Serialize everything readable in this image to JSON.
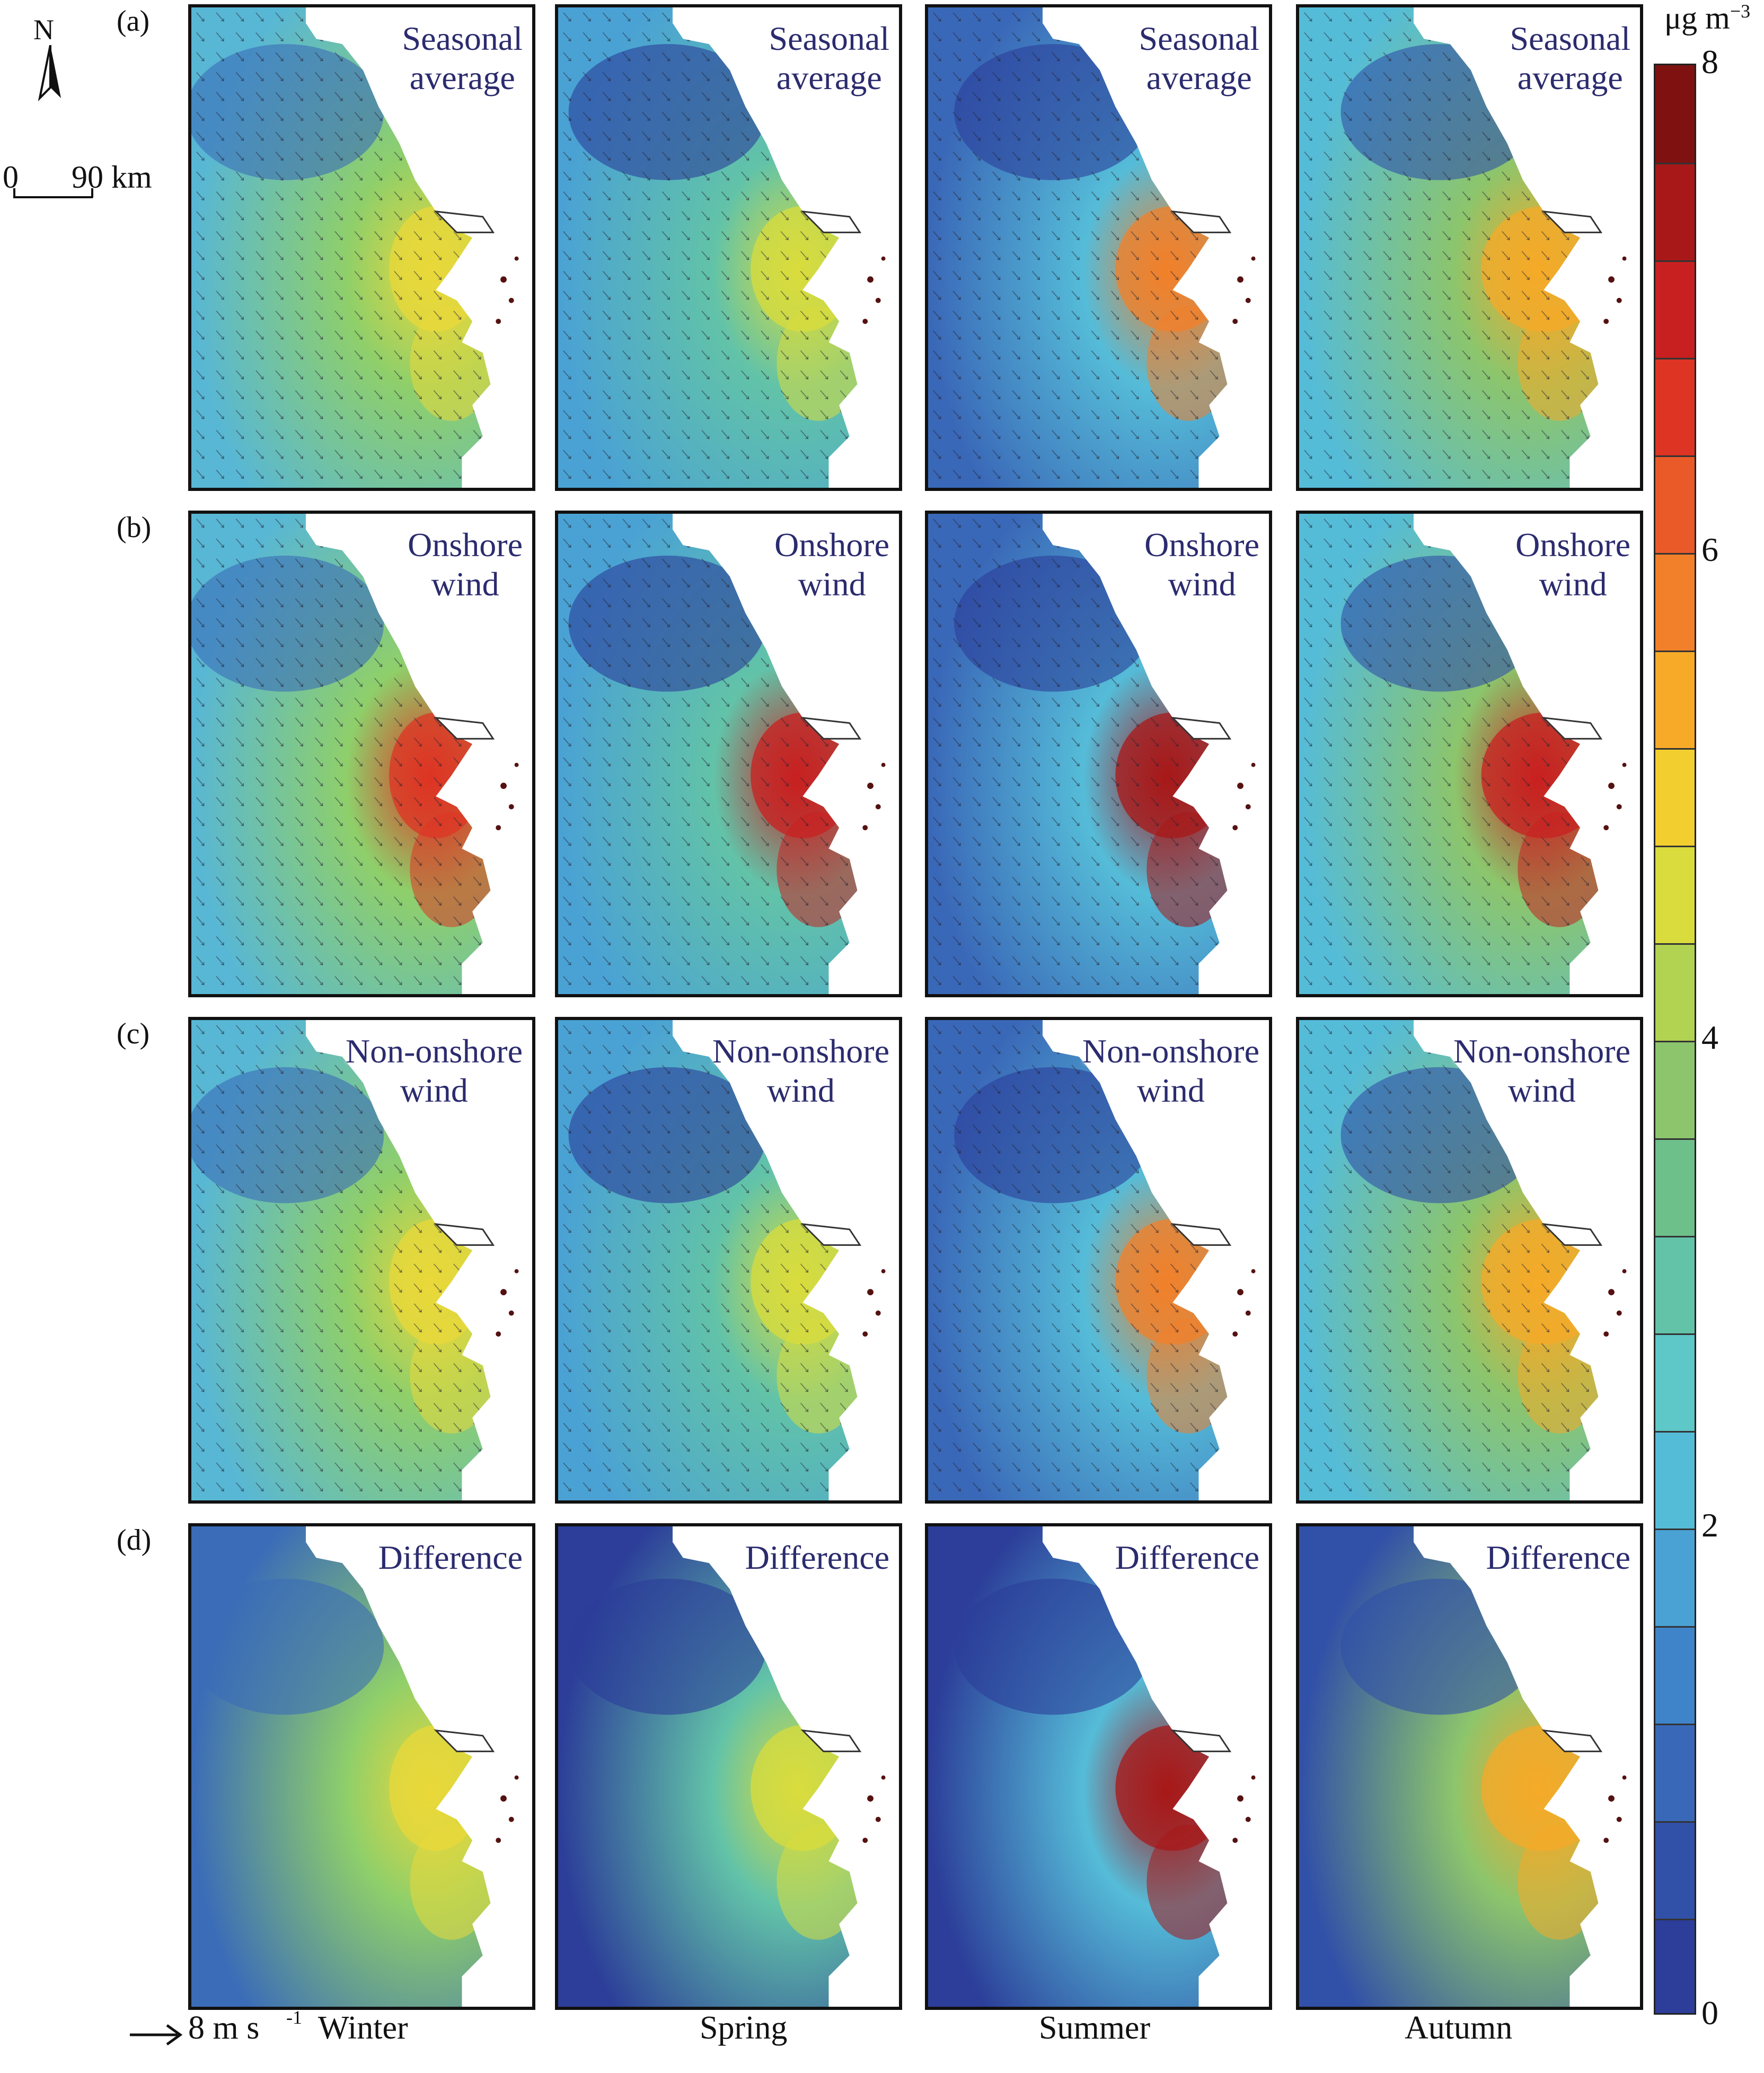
{
  "north_label": "N",
  "scale_bar": {
    "label": "0   90 km",
    "zero": "0",
    "distance": "90 km"
  },
  "wind_reference": {
    "label": "8 m s",
    "exp": "-1"
  },
  "rows": [
    {
      "id": "a",
      "label": "(a)",
      "panel_title": [
        "Seasonal",
        "average"
      ]
    },
    {
      "id": "b",
      "label": "(b)",
      "panel_title": [
        "Onshore",
        "wind"
      ]
    },
    {
      "id": "c",
      "label": "(c)",
      "panel_title": [
        "Non-onshore",
        "wind"
      ]
    },
    {
      "id": "d",
      "label": "(d)",
      "panel_title": [
        "Difference",
        ""
      ]
    }
  ],
  "seasons": [
    "Winter",
    "Spring",
    "Summer",
    "Autumn"
  ],
  "colorbar": {
    "unit": "μg m",
    "unit_exp": "−3",
    "min": 0,
    "max": 8,
    "ticks": [
      "0",
      "2",
      "4",
      "6",
      "8"
    ],
    "colors": [
      "#2c3e99",
      "#3150a8",
      "#3a68b8",
      "#3f84c8",
      "#4aa2d4",
      "#55bcd8",
      "#5ec7c8",
      "#62c3a8",
      "#6ec08a",
      "#8cc56c",
      "#b2d252",
      "#d9dc3c",
      "#f2cf2e",
      "#f6aa28",
      "#f2802a",
      "#ea5a28",
      "#de3424",
      "#c82020",
      "#a81818",
      "#7f1111"
    ]
  },
  "chart_data": {
    "type": "heatmap",
    "panels_grid": {
      "rows": [
        "Seasonal average",
        "Onshore wind",
        "Non-onshore wind",
        "Difference"
      ],
      "columns": [
        "Winter",
        "Spring",
        "Summer",
        "Autumn"
      ]
    },
    "colorbar_range": [
      0,
      8
    ],
    "colorbar_unit": "μg m−3"
  }
}
